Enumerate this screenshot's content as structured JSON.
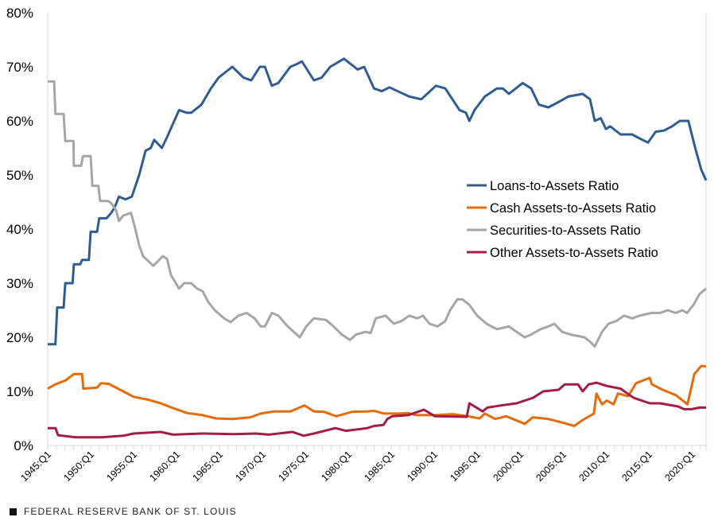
{
  "chart_data": {
    "type": "line",
    "title": "",
    "xlabel": "",
    "ylabel": "",
    "ylim": [
      0,
      80
    ],
    "yticks": [
      "0%",
      "10%",
      "20%",
      "30%",
      "40%",
      "50%",
      "60%",
      "70%",
      "80%"
    ],
    "xlim": [
      "1945:Q1",
      "2021:Q3"
    ],
    "xticks": [
      "1945:Q1",
      "1950:Q1",
      "1955:Q1",
      "1960:Q1",
      "1965:Q1",
      "1970:Q1",
      "1975:Q1",
      "1980:Q1",
      "1985:Q1",
      "1990:Q1",
      "1995:Q1",
      "2000:Q1",
      "2005:Q1",
      "2010:Q1",
      "2015:Q1",
      "2020:Q1"
    ],
    "grid": false,
    "legend_position": "center-right",
    "series": [
      {
        "name": "Loans-to-Assets Ratio",
        "color": "#2f5d91",
        "points": [
          [
            1945.0,
            18.7
          ],
          [
            1945.9,
            18.7
          ],
          [
            1946.1,
            25.5
          ],
          [
            1946.85,
            25.5
          ],
          [
            1947.05,
            30
          ],
          [
            1947.9,
            30
          ],
          [
            1948.05,
            33.5
          ],
          [
            1948.8,
            33.5
          ],
          [
            1949.0,
            34.3
          ],
          [
            1949.8,
            34.3
          ],
          [
            1950.0,
            39.5
          ],
          [
            1950.75,
            39.5
          ],
          [
            1951.0,
            42
          ],
          [
            1951.85,
            42
          ],
          [
            1952.4,
            43
          ],
          [
            1952.8,
            44
          ],
          [
            1953.3,
            46
          ],
          [
            1954.05,
            45.5
          ],
          [
            1954.8,
            46
          ],
          [
            1955.65,
            50
          ],
          [
            1956.4,
            54.5
          ],
          [
            1957.0,
            55
          ],
          [
            1957.4,
            56.5
          ],
          [
            1958.3,
            55
          ],
          [
            1958.9,
            57
          ],
          [
            1960.3,
            62
          ],
          [
            1961.2,
            61.5
          ],
          [
            1961.7,
            61.5
          ],
          [
            1962.9,
            63
          ],
          [
            1964.0,
            66
          ],
          [
            1964.9,
            68
          ],
          [
            1966.5,
            70
          ],
          [
            1967.8,
            68
          ],
          [
            1968.7,
            67.5
          ],
          [
            1969.7,
            70
          ],
          [
            1970.3,
            70
          ],
          [
            1971.1,
            66.5
          ],
          [
            1971.85,
            67
          ],
          [
            1973.25,
            70
          ],
          [
            1974.0,
            70.5
          ],
          [
            1974.6,
            71
          ],
          [
            1976.0,
            67.5
          ],
          [
            1976.9,
            68
          ],
          [
            1977.9,
            70
          ],
          [
            1979.5,
            71.5
          ],
          [
            1981.1,
            69.5
          ],
          [
            1981.85,
            70
          ],
          [
            1983.0,
            66
          ],
          [
            1983.9,
            65.5
          ],
          [
            1984.8,
            66.2
          ],
          [
            1987.1,
            64.5
          ],
          [
            1988.5,
            64
          ],
          [
            1990.2,
            66.5
          ],
          [
            1991.3,
            66
          ],
          [
            1992.95,
            62
          ],
          [
            1993.7,
            61.5
          ],
          [
            1994.1,
            60
          ],
          [
            1994.7,
            62
          ],
          [
            1995.9,
            64.5
          ],
          [
            1997.3,
            66
          ],
          [
            1998.0,
            66
          ],
          [
            1998.7,
            65
          ],
          [
            2000.3,
            67
          ],
          [
            2001.3,
            66
          ],
          [
            2002.2,
            63
          ],
          [
            2003.3,
            62.5
          ],
          [
            2004.5,
            63.5
          ],
          [
            2005.6,
            64.5
          ],
          [
            2007.3,
            65
          ],
          [
            2008.15,
            64
          ],
          [
            2008.7,
            60
          ],
          [
            2009.4,
            60.5
          ],
          [
            2010.0,
            58.5
          ],
          [
            2010.5,
            59
          ],
          [
            2011.7,
            57.5
          ],
          [
            2013.05,
            57.5
          ],
          [
            2014.25,
            56.5
          ],
          [
            2014.9,
            56
          ],
          [
            2015.8,
            58
          ],
          [
            2016.75,
            58.2
          ],
          [
            2017.7,
            59
          ],
          [
            2018.6,
            60
          ],
          [
            2019.6,
            60
          ],
          [
            2020.4,
            55
          ],
          [
            2021.1,
            51
          ],
          [
            2021.7,
            49
          ]
        ]
      },
      {
        "name": "Cash Assets-to-Assets Ratio",
        "color": "#e46c0a",
        "points": [
          [
            1945.0,
            10.5
          ],
          [
            1945.9,
            11.3
          ],
          [
            1947.05,
            12
          ],
          [
            1948.05,
            13.2
          ],
          [
            1949.0,
            13.2
          ],
          [
            1949.15,
            10.5
          ],
          [
            1950.75,
            10.7
          ],
          [
            1951.2,
            11.5
          ],
          [
            1952.1,
            11.4
          ],
          [
            1953.8,
            10
          ],
          [
            1955.0,
            9
          ],
          [
            1956.85,
            8.4
          ],
          [
            1958.15,
            7.8
          ],
          [
            1959.6,
            6.9
          ],
          [
            1961.2,
            6
          ],
          [
            1963.05,
            5.6
          ],
          [
            1964.6,
            5
          ],
          [
            1966.5,
            4.9
          ],
          [
            1968.6,
            5.2
          ],
          [
            1969.8,
            5.9
          ],
          [
            1971.4,
            6.3
          ],
          [
            1973.25,
            6.3
          ],
          [
            1974.9,
            7.4
          ],
          [
            1976.0,
            6.3
          ],
          [
            1977.2,
            6.2
          ],
          [
            1978.6,
            5.4
          ],
          [
            1980.4,
            6.2
          ],
          [
            1982.2,
            6.3
          ],
          [
            1983.0,
            6.4
          ],
          [
            1984.15,
            5.9
          ],
          [
            1986.0,
            5.9
          ],
          [
            1986.95,
            6
          ],
          [
            1987.9,
            5.6
          ],
          [
            1990.1,
            5.6
          ],
          [
            1992.2,
            5.8
          ],
          [
            1993.9,
            5.4
          ],
          [
            1995.3,
            5
          ],
          [
            1995.9,
            5.9
          ],
          [
            1997.1,
            4.9
          ],
          [
            1998.4,
            5.4
          ],
          [
            2000.55,
            4
          ],
          [
            2001.5,
            5.2
          ],
          [
            2003.3,
            4.9
          ],
          [
            2005.2,
            4.1
          ],
          [
            2006.3,
            3.6
          ],
          [
            2007.3,
            4.7
          ],
          [
            2008.6,
            5.9
          ],
          [
            2008.9,
            9.6
          ],
          [
            2009.55,
            7.6
          ],
          [
            2010.1,
            8.3
          ],
          [
            2010.9,
            7.6
          ],
          [
            2011.4,
            9.6
          ],
          [
            2012.6,
            9.1
          ],
          [
            2013.5,
            11.5
          ],
          [
            2015.1,
            12.5
          ],
          [
            2015.35,
            11.3
          ],
          [
            2016.6,
            10.3
          ],
          [
            2018.15,
            9.3
          ],
          [
            2019.5,
            7.6
          ],
          [
            2020.3,
            13.2
          ],
          [
            2021.1,
            14.7
          ],
          [
            2021.7,
            14.6
          ]
        ]
      },
      {
        "name": "Securities-to-Assets Ratio",
        "color": "#a6a6a6",
        "points": [
          [
            1945.0,
            67.3
          ],
          [
            1945.75,
            67.3
          ],
          [
            1945.9,
            61.3
          ],
          [
            1946.85,
            61.3
          ],
          [
            1947.05,
            56.3
          ],
          [
            1948.0,
            56.3
          ],
          [
            1948.05,
            51.7
          ],
          [
            1948.9,
            51.7
          ],
          [
            1949.1,
            53.5
          ],
          [
            1950.0,
            53.5
          ],
          [
            1950.2,
            48
          ],
          [
            1950.9,
            48
          ],
          [
            1951.1,
            45.2
          ],
          [
            1952.0,
            45.2
          ],
          [
            1952.4,
            44.8
          ],
          [
            1952.95,
            43.5
          ],
          [
            1953.3,
            41.5
          ],
          [
            1953.8,
            42.5
          ],
          [
            1954.7,
            43
          ],
          [
            1955.2,
            40
          ],
          [
            1955.65,
            37
          ],
          [
            1956.1,
            35
          ],
          [
            1957.3,
            33.2
          ],
          [
            1957.8,
            34
          ],
          [
            1958.4,
            35
          ],
          [
            1958.9,
            34.5
          ],
          [
            1959.35,
            31.5
          ],
          [
            1960.3,
            29
          ],
          [
            1960.9,
            30
          ],
          [
            1961.7,
            30
          ],
          [
            1962.4,
            29
          ],
          [
            1963.05,
            28.5
          ],
          [
            1963.7,
            26.5
          ],
          [
            1964.45,
            25
          ],
          [
            1965.55,
            23.5
          ],
          [
            1966.3,
            22.8
          ],
          [
            1967.2,
            24
          ],
          [
            1968.15,
            24.5
          ],
          [
            1969.1,
            23.5
          ],
          [
            1969.8,
            22
          ],
          [
            1970.3,
            22
          ],
          [
            1971.1,
            24.5
          ],
          [
            1971.85,
            24
          ],
          [
            1972.95,
            22
          ],
          [
            1974.35,
            20
          ],
          [
            1975.1,
            22
          ],
          [
            1976.0,
            23.5
          ],
          [
            1977.4,
            23.2
          ],
          [
            1978.3,
            22
          ],
          [
            1979.25,
            20.5
          ],
          [
            1980.2,
            19.5
          ],
          [
            1980.9,
            20.5
          ],
          [
            1982.0,
            21
          ],
          [
            1982.6,
            20.8
          ],
          [
            1983.2,
            23.5
          ],
          [
            1984.35,
            24
          ],
          [
            1985.3,
            22.5
          ],
          [
            1986.2,
            23
          ],
          [
            1987.1,
            24
          ],
          [
            1988.05,
            23.5
          ],
          [
            1988.7,
            24
          ],
          [
            1989.45,
            22.5
          ],
          [
            1990.4,
            22
          ],
          [
            1991.3,
            23
          ],
          [
            1991.85,
            25
          ],
          [
            1992.7,
            27
          ],
          [
            1993.3,
            27
          ],
          [
            1994.1,
            26
          ],
          [
            1995.0,
            24
          ],
          [
            1996.1,
            22.5
          ],
          [
            1997.3,
            21.5
          ],
          [
            1998.7,
            22
          ],
          [
            1999.6,
            21
          ],
          [
            2000.55,
            20
          ],
          [
            2001.3,
            20.5
          ],
          [
            2002.4,
            21.5
          ],
          [
            2003.3,
            22
          ],
          [
            2004.0,
            22.5
          ],
          [
            2004.9,
            21
          ],
          [
            2005.9,
            20.5
          ],
          [
            2007.5,
            20
          ],
          [
            2008.15,
            19.2
          ],
          [
            2008.7,
            18.3
          ],
          [
            2009.55,
            21
          ],
          [
            2010.3,
            22.5
          ],
          [
            2011.2,
            23
          ],
          [
            2012.1,
            24
          ],
          [
            2013.05,
            23.5
          ],
          [
            2013.95,
            24
          ],
          [
            2015.35,
            24.5
          ],
          [
            2016.3,
            24.5
          ],
          [
            2017.2,
            25
          ],
          [
            2018.15,
            24.5
          ],
          [
            2018.9,
            25
          ],
          [
            2019.45,
            24.5
          ],
          [
            2020.2,
            26
          ],
          [
            2020.9,
            28
          ],
          [
            2021.7,
            29
          ]
        ]
      },
      {
        "name": "Other Assets-to-Assets Ratio",
        "color": "#a51c46",
        "points": [
          [
            1945.0,
            3.2
          ],
          [
            1945.9,
            3.2
          ],
          [
            1946.2,
            1.9
          ],
          [
            1948.25,
            1.5
          ],
          [
            1951.3,
            1.5
          ],
          [
            1953.8,
            1.8
          ],
          [
            1955.0,
            2.2
          ],
          [
            1958.15,
            2.5
          ],
          [
            1959.6,
            2
          ],
          [
            1963.05,
            2.2
          ],
          [
            1966.75,
            2.1
          ],
          [
            1969.25,
            2.2
          ],
          [
            1970.75,
            2
          ],
          [
            1973.5,
            2.5
          ],
          [
            1974.8,
            1.8
          ],
          [
            1976.0,
            2.2
          ],
          [
            1978.5,
            3.2
          ],
          [
            1979.7,
            2.7
          ],
          [
            1982.2,
            3.2
          ],
          [
            1983.0,
            3.6
          ],
          [
            1984.1,
            3.8
          ],
          [
            1984.55,
            4.9
          ],
          [
            1985.1,
            5.4
          ],
          [
            1986.95,
            5.6
          ],
          [
            1988.25,
            6.3
          ],
          [
            1988.8,
            6.6
          ],
          [
            1990.1,
            5.4
          ],
          [
            1993.8,
            5.3
          ],
          [
            1994.1,
            7.8
          ],
          [
            1995.65,
            6.3
          ],
          [
            1996.2,
            7
          ],
          [
            1997.8,
            7.4
          ],
          [
            1999.6,
            7.8
          ],
          [
            2001.5,
            8.8
          ],
          [
            2002.7,
            10
          ],
          [
            2004.5,
            10.3
          ],
          [
            2005.2,
            11.3
          ],
          [
            2006.75,
            11.3
          ],
          [
            2007.3,
            10
          ],
          [
            2008.0,
            11.3
          ],
          [
            2008.9,
            11.6
          ],
          [
            2010.1,
            11
          ],
          [
            2011.7,
            10.5
          ],
          [
            2013.25,
            8.8
          ],
          [
            2015.1,
            7.8
          ],
          [
            2016.3,
            7.8
          ],
          [
            2018.4,
            7.2
          ],
          [
            2019.1,
            6.7
          ],
          [
            2020.0,
            6.7
          ],
          [
            2020.9,
            7
          ],
          [
            2021.7,
            7
          ]
        ]
      }
    ]
  },
  "footer": {
    "source": "FEDERAL RESERVE BANK OF ST. LOUIS"
  }
}
